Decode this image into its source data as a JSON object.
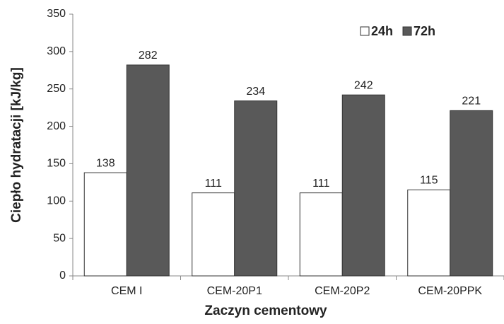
{
  "chart_data": {
    "type": "bar",
    "y_label": "Ciepło hydratacji [kJ/kg]",
    "x_label": "Zaczyn cementowy",
    "categories": [
      "CEM I",
      "CEM-20P1",
      "CEM-20P2",
      "CEM-20PPK"
    ],
    "series": [
      {
        "name": "24h",
        "color": "#ffffff",
        "values": [
          138,
          111,
          111,
          115
        ]
      },
      {
        "name": "72h",
        "color": "#595959",
        "values": [
          282,
          234,
          242,
          221
        ]
      }
    ],
    "ylim": [
      0,
      350
    ],
    "yticks": [
      0,
      50,
      100,
      150,
      200,
      250,
      300,
      350
    ],
    "grid": false,
    "legend": "top-right"
  }
}
